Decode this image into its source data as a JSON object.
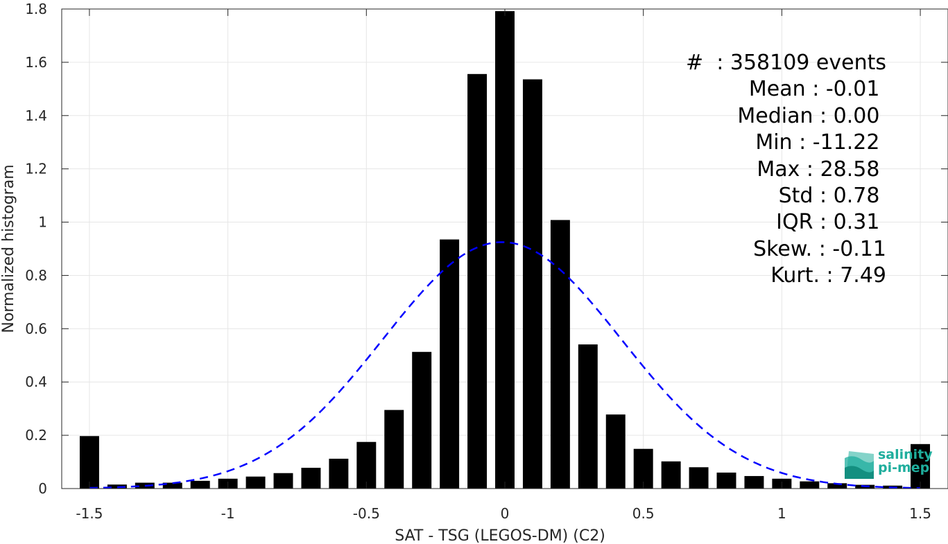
{
  "chart_data": {
    "type": "bar",
    "xlabel": "SAT - TSG (LEGOS-DM) (C2)",
    "ylabel": "Normalized histogram",
    "xlim": [
      -1.6,
      1.6
    ],
    "ylim": [
      0,
      1.8
    ],
    "xticks": [
      -1.5,
      -1,
      -0.5,
      0,
      0.5,
      1,
      1.5
    ],
    "xtick_labels": [
      "-1.5",
      "-1",
      "-0.5",
      "0",
      "0.5",
      "1",
      "1.5"
    ],
    "yticks": [
      0,
      0.2,
      0.4,
      0.6,
      0.8,
      1,
      1.2,
      1.4,
      1.6,
      1.8
    ],
    "ytick_labels": [
      "0",
      "0.2",
      "0.4",
      "0.6",
      "0.8",
      "1",
      "1.2",
      "1.4",
      "1.6",
      "1.8"
    ],
    "grid": true,
    "bin_width": 0.1,
    "bar_color": "#000000",
    "series": [
      {
        "x": [
          -1.5,
          -1.4,
          -1.3,
          -1.2,
          -1.1,
          -1.0,
          -0.9,
          -0.8,
          -0.7,
          -0.6,
          -0.5,
          -0.4,
          -0.3,
          -0.2,
          -0.1,
          0.0,
          0.1,
          0.2,
          0.3,
          0.4,
          0.5,
          0.6,
          0.7,
          0.8,
          0.9,
          1.0,
          1.1,
          1.2,
          1.3,
          1.4,
          1.5
        ],
        "values": [
          0.197,
          0.015,
          0.022,
          0.022,
          0.029,
          0.037,
          0.045,
          0.058,
          0.078,
          0.112,
          0.175,
          0.295,
          0.513,
          0.935,
          1.556,
          1.792,
          1.536,
          1.008,
          0.541,
          0.278,
          0.149,
          0.102,
          0.08,
          0.06,
          0.047,
          0.037,
          0.027,
          0.02,
          0.014,
          0.011,
          0.167
        ]
      }
    ],
    "fit_curve": {
      "style": "dashed",
      "color": "#0000ff",
      "mean": -0.01,
      "peak": 0.925,
      "std": 0.43
    },
    "stats_box": [
      "#  : 358109 events",
      "Mean : -0.01 ",
      "Median : 0.00 ",
      "Min : -11.22 ",
      "Max : 28.58 ",
      "Std : 0.78 ",
      "IQR : 0.31 ",
      "Skew. : -0.11",
      "Kurt. : 7.49"
    ]
  },
  "logo": {
    "line1": "salinity",
    "line2": "pi-mep",
    "color": "#1fae9d"
  }
}
